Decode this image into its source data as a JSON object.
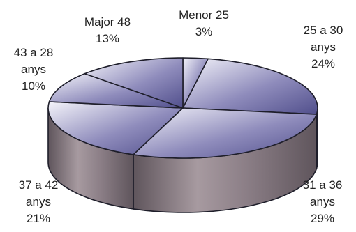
{
  "chart_data": {
    "type": "pie",
    "three_d": true,
    "slices": [
      {
        "name": "Menor 25",
        "percent": 3,
        "label_lines": [
          "Menor 25",
          "3%"
        ]
      },
      {
        "name": "25 a 30 anys",
        "percent": 24,
        "label_lines": [
          "25 a 30",
          "anys",
          "24%"
        ]
      },
      {
        "name": "31 a 36 anys",
        "percent": 29,
        "label_lines": [
          "31 a 36",
          "anys",
          "29%"
        ]
      },
      {
        "name": "37 a 42 anys",
        "percent": 21,
        "label_lines": [
          "37 a 42",
          "anys",
          "21%"
        ]
      },
      {
        "name": "43 a 28 anys",
        "percent": 10,
        "label_lines": [
          "43 a 28",
          "anys",
          "10%"
        ]
      },
      {
        "name": "Major 48",
        "percent": 13,
        "label_lines": [
          "Major 48",
          "13%"
        ]
      }
    ],
    "colors": {
      "top_light": "#f4f4fa",
      "top_dark": "#514f8c",
      "side_light": "#a79aa0",
      "side_dark": "#5f555c",
      "edge": "#1e1e2a"
    }
  }
}
